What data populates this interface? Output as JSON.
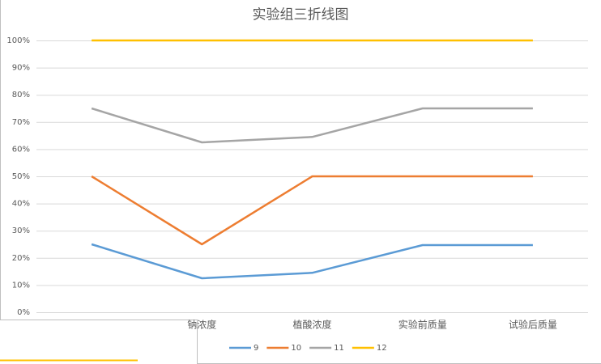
{
  "chart_data": {
    "type": "line",
    "title": "实验组三折线图",
    "categories": [
      null,
      "钠浓度",
      "植酸浓度",
      "实验前质量",
      "试验后质量"
    ],
    "series": [
      {
        "name": "9",
        "color": "#5b9bd5",
        "values": [
          25,
          12.5,
          14.5,
          24.7,
          24.7
        ]
      },
      {
        "name": "10",
        "color": "#ed7d31",
        "values": [
          50,
          25,
          50,
          50,
          50
        ]
      },
      {
        "name": "11",
        "color": "#a5a5a5",
        "values": [
          75,
          62.5,
          64.5,
          75,
          75
        ]
      },
      {
        "name": "12",
        "color": "#ffc000",
        "values": [
          100,
          100,
          100,
          100,
          100
        ]
      }
    ],
    "ylim": [
      0,
      100
    ],
    "yticks": [
      {
        "value": 0,
        "label": "0%"
      },
      {
        "value": 10,
        "label": "10%"
      },
      {
        "value": 20,
        "label": "20%"
      },
      {
        "value": 30,
        "label": "30%"
      },
      {
        "value": 40,
        "label": "40%"
      },
      {
        "value": 50,
        "label": "50%"
      },
      {
        "value": 60,
        "label": "60%"
      },
      {
        "value": 70,
        "label": "70%"
      },
      {
        "value": 80,
        "label": "80%"
      },
      {
        "value": 90,
        "label": "90%"
      },
      {
        "value": 100,
        "label": "100%"
      }
    ],
    "grid": true,
    "legend": "bottom"
  }
}
